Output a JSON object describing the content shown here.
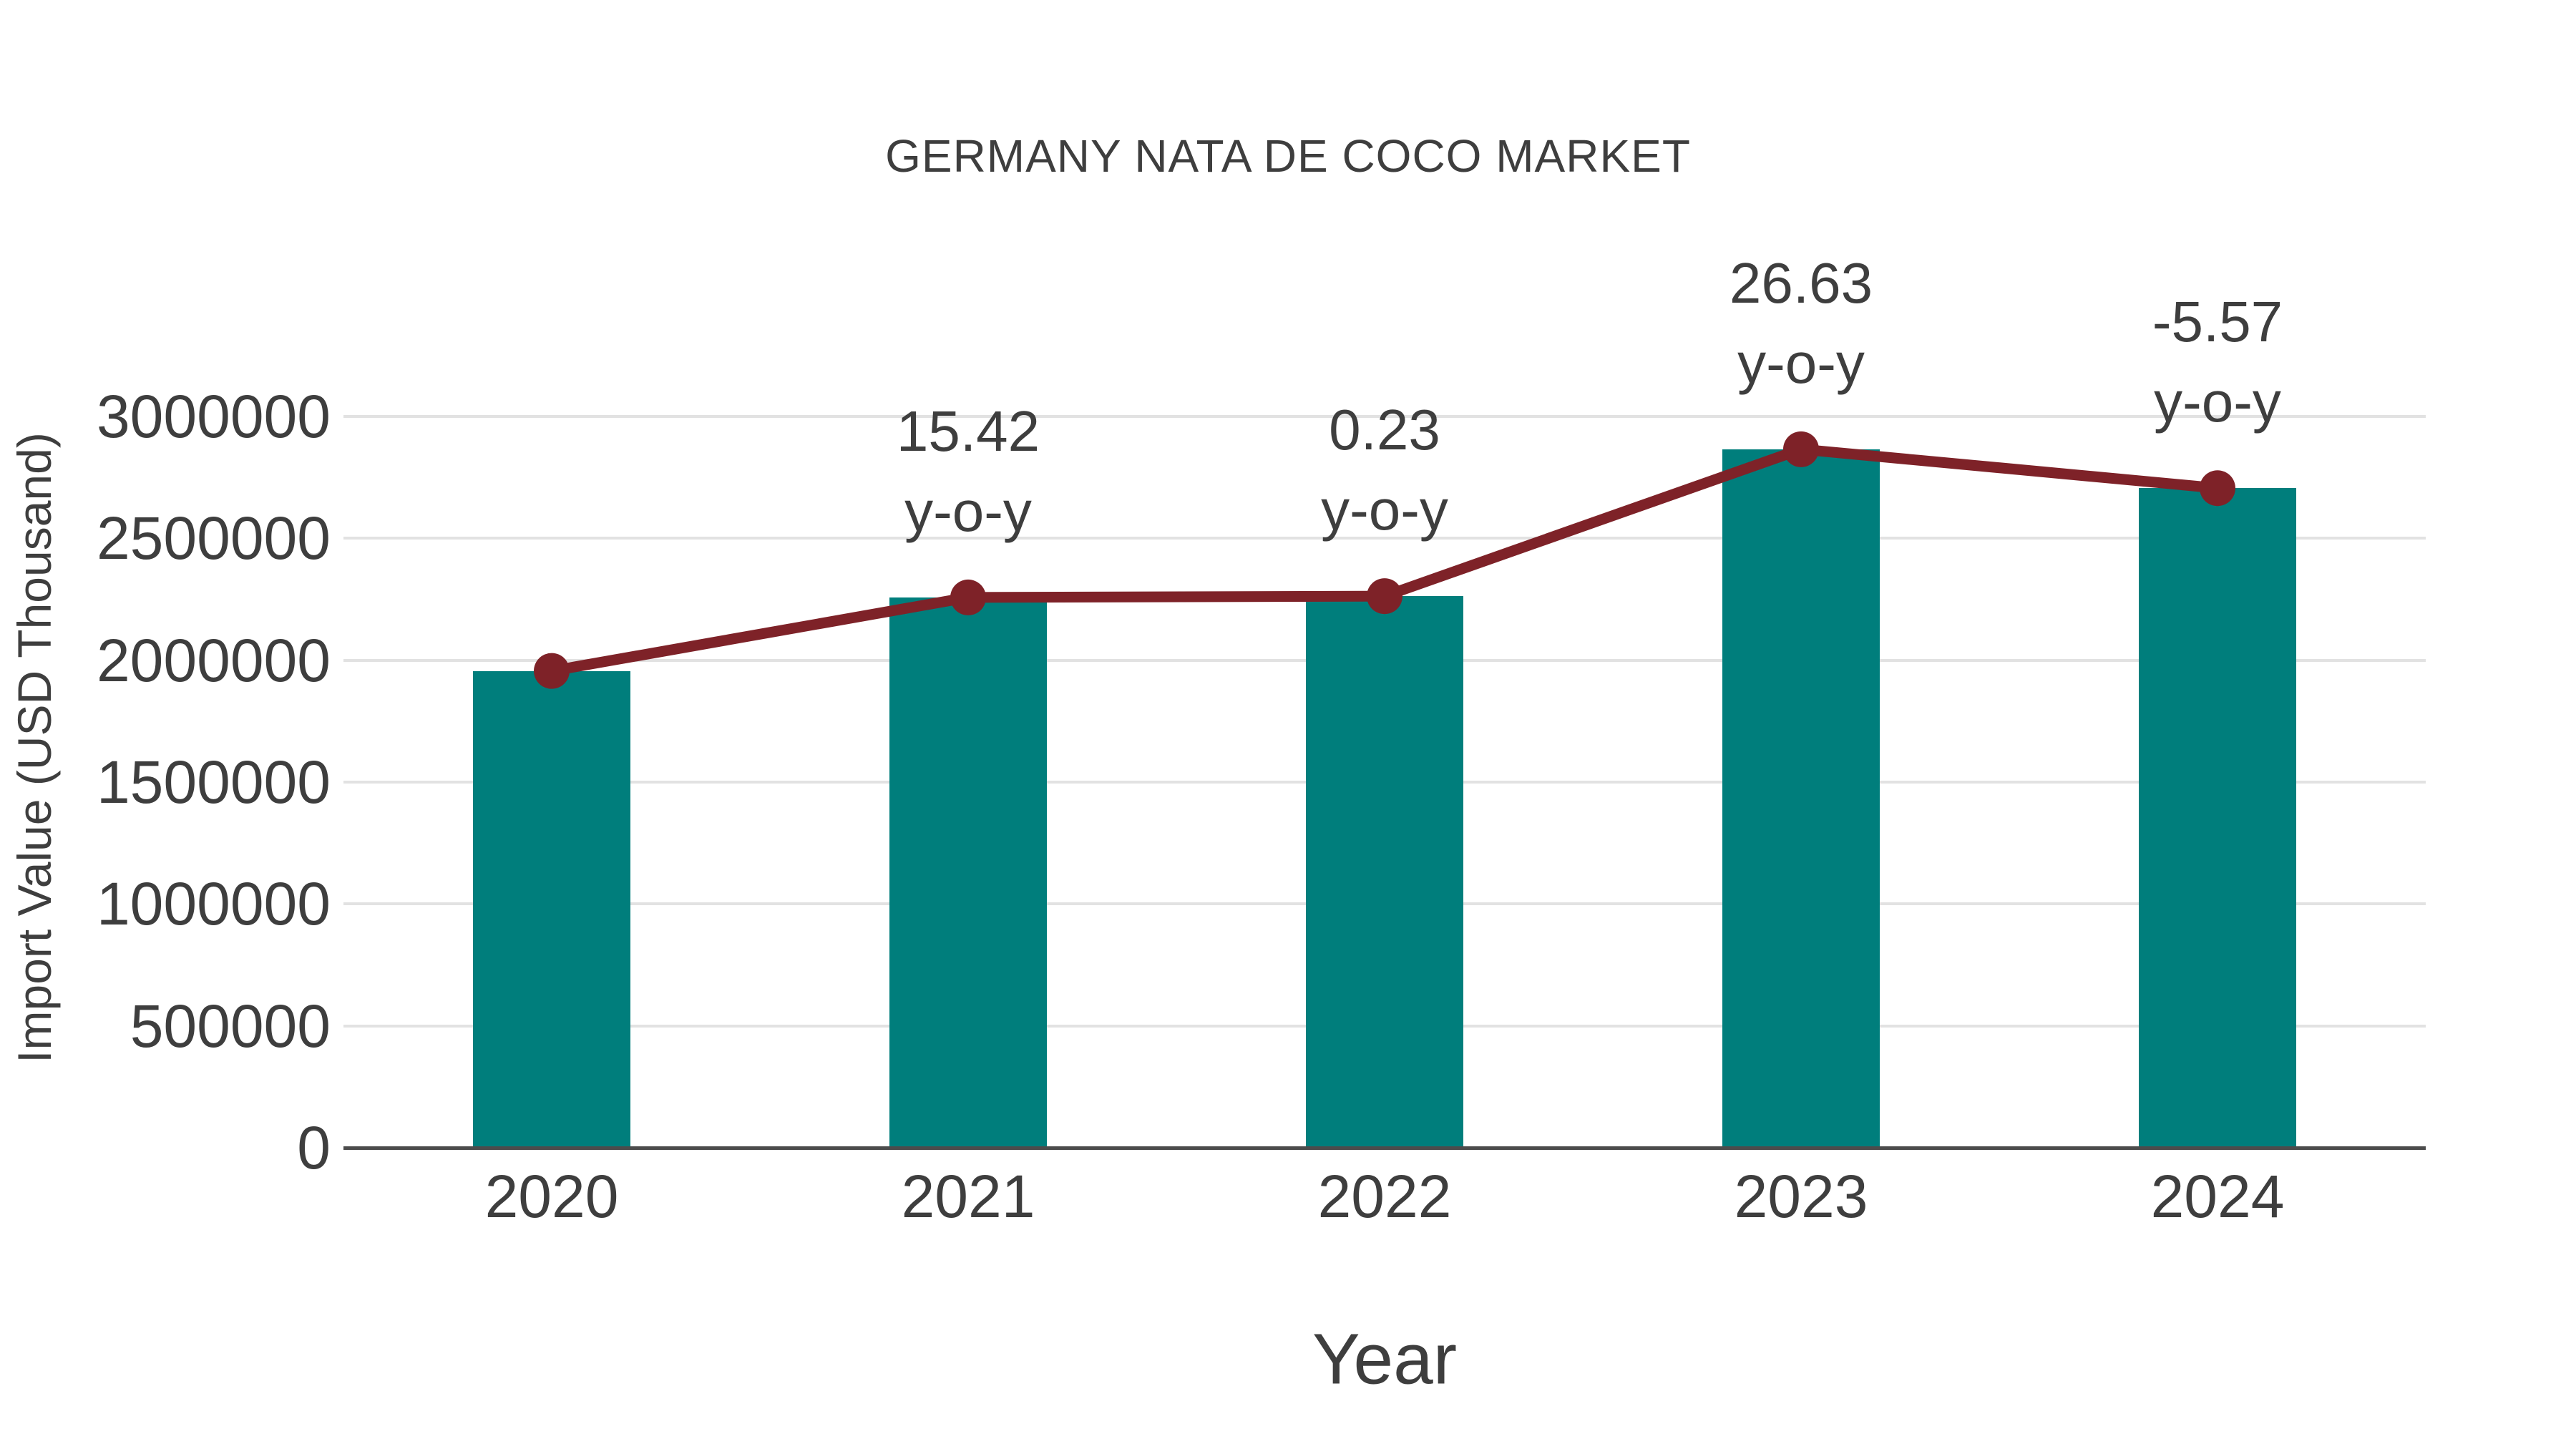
{
  "title": "GERMANY NATA DE COCO MARKET",
  "chart_data": {
    "type": "bar+line",
    "title": "GERMANY NATA DE COCO MARKET",
    "xlabel": "Year",
    "ylabel": "Import Value (USD Thousand)",
    "categories": [
      "2020",
      "2021",
      "2022",
      "2023",
      "2024"
    ],
    "series": [
      {
        "name": "Import Value (USD Thousand)",
        "type": "bar",
        "color": "#007E7C",
        "values": [
          1956000,
          2257600,
          2262800,
          2865400,
          2705900
        ]
      },
      {
        "name": "Year-over-year trend",
        "type": "line",
        "color": "#7E2228",
        "values": [
          1956000,
          2257600,
          2262800,
          2865400,
          2705900
        ]
      }
    ],
    "yoy_labels": [
      "",
      "15.42",
      "0.23",
      "26.63",
      "-5.57"
    ],
    "yoy_suffix": "y-o-y",
    "yticks": [
      "0",
      "500000",
      "1000000",
      "1500000",
      "2000000",
      "2500000",
      "3000000"
    ],
    "ylim": [
      0,
      3000000
    ],
    "grid": "horizontal",
    "legend": "none",
    "colors": {
      "bar": "#007E7C",
      "line": "#7E2228",
      "marker": "#7E2228",
      "text": "#3E3E3E",
      "gridline": "#E2E2E2",
      "axis_line": "#4C4C4C",
      "background": "#FFFFFF"
    }
  }
}
